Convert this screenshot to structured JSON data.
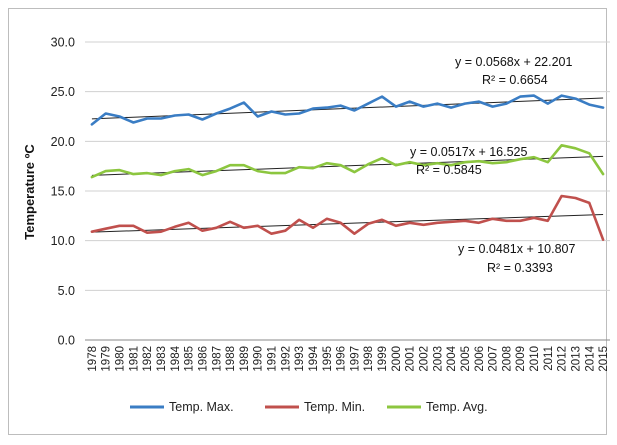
{
  "chart_data": {
    "type": "line",
    "ylabel": "Temperature ºC",
    "xlabel": "",
    "ylim": [
      0,
      30
    ],
    "yticks": [
      "0.0",
      "5.0",
      "10.0",
      "15.0",
      "20.0",
      "25.0",
      "30.0"
    ],
    "grid": "horizontal",
    "legend": "bottom",
    "x": [
      "1978",
      "1979",
      "1980",
      "1981",
      "1982",
      "1983",
      "1984",
      "1985",
      "1986",
      "1987",
      "1988",
      "1989",
      "1990",
      "1991",
      "1992",
      "1993",
      "1994",
      "1995",
      "1996",
      "1997",
      "1998",
      "1999",
      "2000",
      "2001",
      "2002",
      "2003",
      "2004",
      "2005",
      "2006",
      "2007",
      "2008",
      "2009",
      "2010",
      "2011",
      "2012",
      "2013",
      "2014",
      "2015"
    ],
    "series": [
      {
        "name": "Temp. Max.",
        "color": "#3a7dc4",
        "values": [
          21.7,
          22.8,
          22.5,
          21.9,
          22.3,
          22.3,
          22.6,
          22.7,
          22.2,
          22.8,
          23.3,
          23.9,
          22.5,
          23.0,
          22.7,
          22.8,
          23.3,
          23.4,
          23.6,
          23.1,
          23.8,
          24.5,
          23.5,
          24.0,
          23.5,
          23.8,
          23.4,
          23.8,
          24.0,
          23.5,
          23.8,
          24.5,
          24.6,
          23.8,
          24.6,
          24.3,
          23.7,
          23.4
        ],
        "trend": {
          "slope": 0.0568,
          "intercept": 22.201
        },
        "equation": "y = 0.0568x + 22.201",
        "r2": "R² = 0.6654"
      },
      {
        "name": "Temp. Min.",
        "color": "#c0504d",
        "values": [
          10.9,
          11.2,
          11.5,
          11.5,
          10.8,
          10.9,
          11.4,
          11.8,
          11.0,
          11.3,
          11.9,
          11.3,
          11.5,
          10.7,
          11.0,
          12.1,
          11.3,
          12.2,
          11.8,
          10.7,
          11.7,
          12.1,
          11.5,
          11.8,
          11.6,
          11.8,
          11.9,
          12.0,
          11.8,
          12.2,
          12.0,
          12.0,
          12.3,
          12.0,
          14.5,
          14.3,
          13.8,
          10.1
        ],
        "trend": {
          "slope": 0.0481,
          "intercept": 10.807
        },
        "equation": "y = 0.0481x + 10.807",
        "r2": "R² = 0.3393"
      },
      {
        "name": "Temp. Avg.",
        "color": "#8cc63f",
        "values": [
          16.4,
          17.0,
          17.1,
          16.7,
          16.8,
          16.6,
          17.0,
          17.2,
          16.6,
          17.0,
          17.6,
          17.6,
          17.0,
          16.8,
          16.8,
          17.4,
          17.3,
          17.8,
          17.6,
          16.9,
          17.7,
          18.3,
          17.6,
          17.9,
          17.6,
          17.8,
          17.6,
          17.9,
          18.0,
          17.8,
          17.9,
          18.2,
          18.4,
          17.9,
          19.6,
          19.3,
          18.8,
          16.7
        ],
        "trend": {
          "slope": 0.0517,
          "intercept": 16.525
        },
        "equation": "y = 0.0517x + 16.525",
        "r2": "R² = 0.5845"
      }
    ]
  }
}
